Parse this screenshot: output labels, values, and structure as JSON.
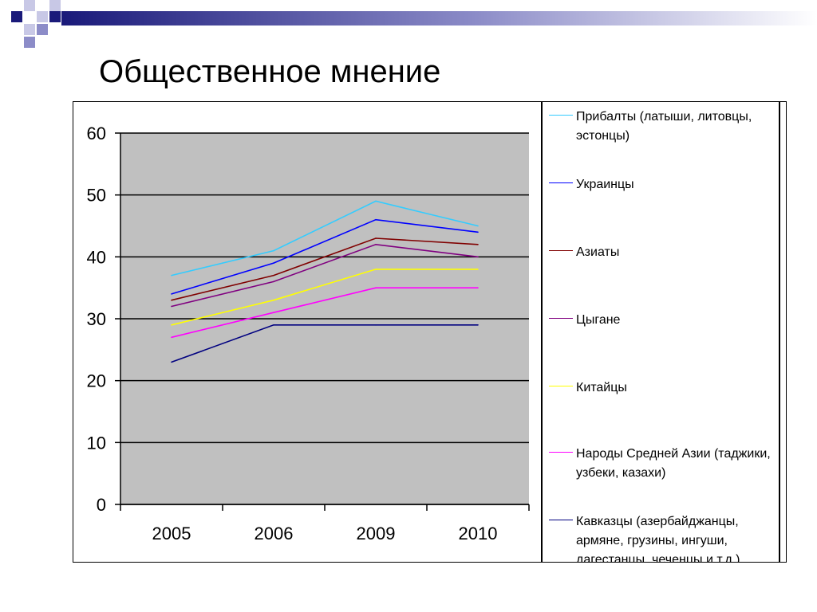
{
  "slide": {
    "title": "Общественное мнение",
    "decor_colors": {
      "dark": "#1a1a7a",
      "mid": "#8c8cc8",
      "light": "#c8c8e6"
    }
  },
  "chart_data": {
    "type": "line",
    "categories": [
      "2005",
      "2006",
      "2009",
      "2010"
    ],
    "ylim": [
      0,
      60
    ],
    "yticks": [
      0,
      10,
      20,
      30,
      40,
      50,
      60
    ],
    "grid": true,
    "plot_background": "#c0c0c0",
    "legend_position": "right",
    "series": [
      {
        "name": "Прибалты (латыши, литовцы, эстонцы)",
        "color": "#33ccff",
        "values": [
          37,
          41,
          49,
          45
        ]
      },
      {
        "name": "Украинцы",
        "color": "#0000ff",
        "values": [
          34,
          39,
          46,
          44
        ]
      },
      {
        "name": "Азиаты",
        "color": "#800000",
        "values": [
          33,
          37,
          43,
          42
        ]
      },
      {
        "name": "Цыгане",
        "color": "#800080",
        "values": [
          32,
          36,
          42,
          40
        ]
      },
      {
        "name": "Китайцы",
        "color": "#ffff00",
        "values": [
          29,
          33,
          38,
          38
        ]
      },
      {
        "name": "Народы Средней Азии (таджики, узбеки, казахи)",
        "color": "#ff00ff",
        "values": [
          27,
          31,
          35,
          35
        ]
      },
      {
        "name": "Кавказцы (азербайджанцы, армяне, грузины, ингуши, дагестанцы, чеченцы и т.д.)",
        "color": "#000080",
        "values": [
          23,
          29,
          29,
          29
        ]
      }
    ]
  }
}
